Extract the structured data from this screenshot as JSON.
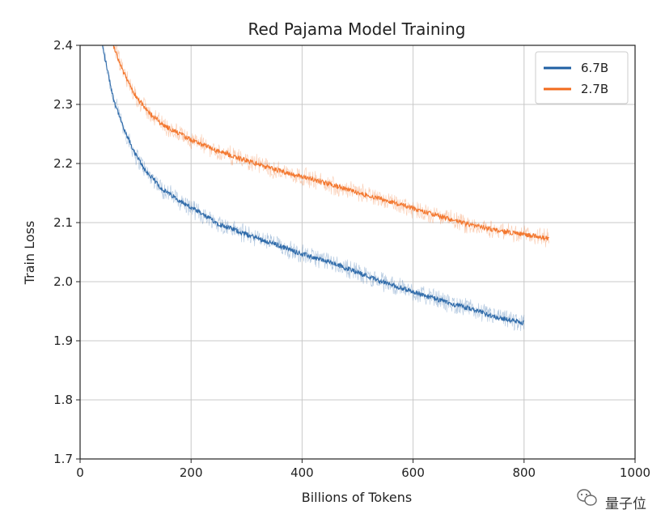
{
  "watermark": {
    "text": "量子位",
    "icon": "wechat-icon"
  },
  "chart_data": {
    "type": "line",
    "title": "Red Pajama Model Training",
    "xlabel": "Billions of Tokens",
    "ylabel": "Train Loss",
    "xlim": [
      0,
      1000
    ],
    "ylim": [
      1.7,
      2.4
    ],
    "xticks": [
      0,
      200,
      400,
      600,
      800,
      1000
    ],
    "yticks": [
      1.7,
      1.8,
      1.9,
      2.0,
      2.1,
      2.2,
      2.3,
      2.4
    ],
    "xtick_labels": [
      "0",
      "200",
      "400",
      "600",
      "800",
      "1000"
    ],
    "ytick_labels": [
      "1.7",
      "1.8",
      "1.9",
      "2.0",
      "2.1",
      "2.2",
      "2.3",
      "2.4"
    ],
    "grid": true,
    "legend_position": "top-right",
    "series": [
      {
        "name": "6.7B",
        "color": "#1f5fa3",
        "x": [
          40,
          60,
          80,
          100,
          120,
          150,
          200,
          250,
          300,
          350,
          400,
          450,
          500,
          550,
          600,
          650,
          700,
          750,
          800
        ],
        "y": [
          2.4,
          2.31,
          2.255,
          2.215,
          2.185,
          2.155,
          2.125,
          2.098,
          2.08,
          2.064,
          2.047,
          2.033,
          2.016,
          1.998,
          1.983,
          1.968,
          1.955,
          1.94,
          1.93
        ]
      },
      {
        "name": "2.7B",
        "color": "#f26b1d",
        "x": [
          60,
          80,
          100,
          120,
          150,
          200,
          250,
          300,
          350,
          400,
          450,
          500,
          550,
          600,
          650,
          700,
          750,
          800,
          845
        ],
        "y": [
          2.4,
          2.35,
          2.315,
          2.29,
          2.265,
          2.24,
          2.22,
          2.205,
          2.19,
          2.178,
          2.165,
          2.151,
          2.138,
          2.124,
          2.11,
          2.097,
          2.087,
          2.08,
          2.073
        ]
      }
    ]
  }
}
